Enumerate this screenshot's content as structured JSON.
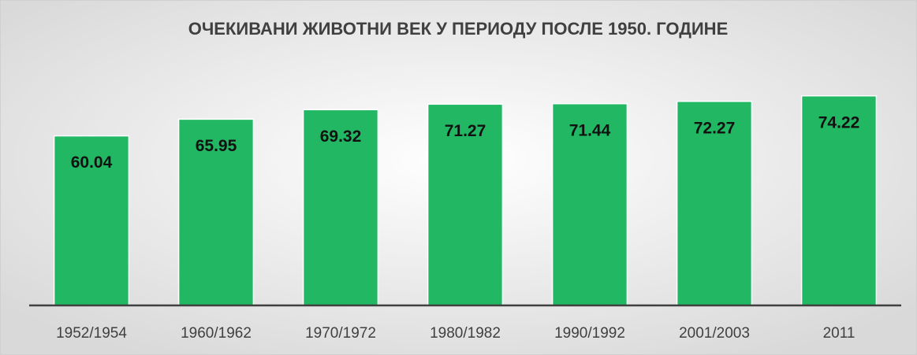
{
  "chart_data": {
    "type": "bar",
    "title": "ОЧЕКИВАНИ ЖИВОТНИ ВЕК У ПЕРИОДУ ПОСЛЕ 1950. ГОДИНЕ",
    "categories": [
      "1952/1954",
      "1960/1962",
      "1970/1972",
      "1980/1982",
      "1990/1992",
      "2001/2003",
      "2011"
    ],
    "values": [
      60.04,
      65.95,
      69.32,
      71.27,
      71.44,
      72.27,
      74.22
    ],
    "color": "#22b863",
    "ylim": [
      0,
      80
    ]
  }
}
